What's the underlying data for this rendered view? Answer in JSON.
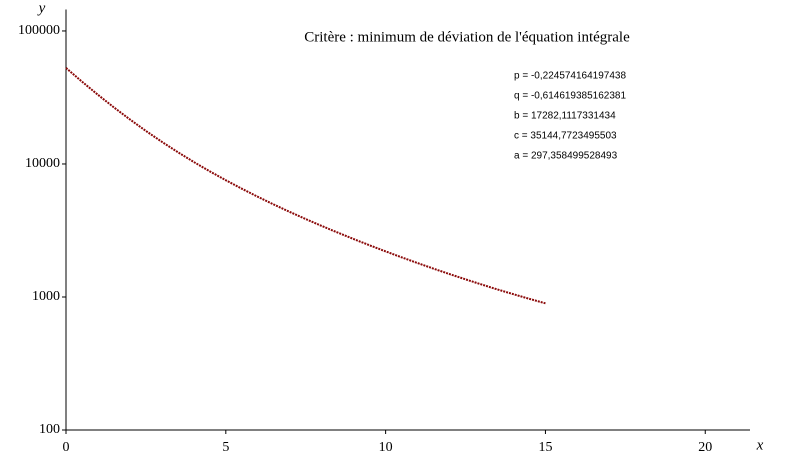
{
  "chart_data": {
    "type": "line",
    "title": "Critère : minimum de déviation de l'équation intégrale",
    "x_label": "x",
    "y_label": "y",
    "annotations": [
      "p  = -0,224574164197438",
      "q  = -0,614619385162381",
      "b  = 17282,1117331434",
      "c  = 35144,7723495503",
      "a  = 297,358499528493"
    ],
    "x": [
      0,
      0.5,
      1,
      1.5,
      2,
      2.5,
      3,
      3.5,
      4,
      4.5,
      5,
      5.5,
      6,
      6.5,
      7,
      7.5,
      8,
      8.5,
      9,
      9.5,
      10,
      10.5,
      11,
      11.5,
      12,
      12.5,
      13,
      13.5,
      14,
      14.5,
      15
    ],
    "series": [
      {
        "name": "y",
        "color": "#8b0a0a",
        "values": [
          52724,
          41591,
          33113,
          26617,
          21608,
          17716,
          14669,
          12262,
          10343,
          8800,
          7547,
          6519,
          5669,
          4959,
          4361,
          3854,
          3421,
          3048,
          2726,
          2446,
          2202,
          1987,
          1799,
          1633,
          1487,
          1357,
          1242,
          1139,
          1049,
          968,
          896
        ]
      }
    ],
    "xlim": [
      0,
      21.4
    ],
    "xticks": [
      0,
      5,
      10,
      15,
      20
    ],
    "ylim": [
      100,
      145000
    ],
    "yticks": [
      100,
      1000,
      10000,
      100000
    ],
    "log_y": true,
    "grid": false
  }
}
